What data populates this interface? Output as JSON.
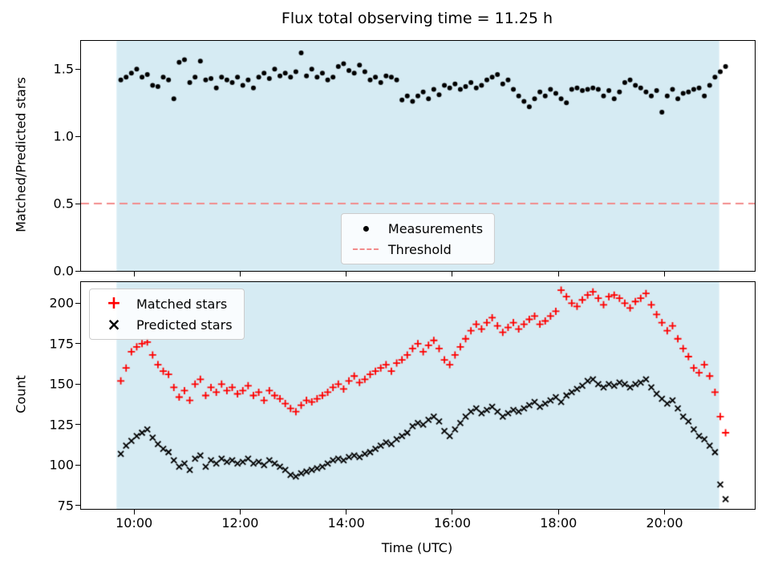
{
  "x_hours": [
    9.75,
    9.85,
    9.95,
    10.05,
    10.15,
    10.25,
    10.35,
    10.45,
    10.55,
    10.65,
    10.75,
    10.85,
    10.95,
    11.05,
    11.15,
    11.25,
    11.35,
    11.45,
    11.55,
    11.65,
    11.75,
    11.85,
    11.95,
    12.05,
    12.15,
    12.25,
    12.35,
    12.45,
    12.55,
    12.65,
    12.75,
    12.85,
    12.95,
    13.05,
    13.15,
    13.25,
    13.35,
    13.45,
    13.55,
    13.65,
    13.75,
    13.85,
    13.95,
    14.05,
    14.15,
    14.25,
    14.35,
    14.45,
    14.55,
    14.65,
    14.75,
    14.85,
    14.95,
    15.05,
    15.15,
    15.25,
    15.35,
    15.45,
    15.55,
    15.65,
    15.75,
    15.85,
    15.95,
    16.05,
    16.15,
    16.25,
    16.35,
    16.45,
    16.55,
    16.65,
    16.75,
    16.85,
    16.95,
    17.05,
    17.15,
    17.25,
    17.35,
    17.45,
    17.55,
    17.65,
    17.75,
    17.85,
    17.95,
    18.05,
    18.15,
    18.25,
    18.35,
    18.45,
    18.55,
    18.65,
    18.75,
    18.85,
    18.95,
    19.05,
    19.15,
    19.25,
    19.35,
    19.45,
    19.55,
    19.65,
    19.75,
    19.85,
    19.95,
    20.05,
    20.15,
    20.25,
    20.35,
    20.45,
    20.55,
    20.65,
    20.75,
    20.85,
    20.95,
    21.05,
    21.15
  ],
  "chart_data": [
    {
      "type": "scatter",
      "title": "Flux total observing time = 11.25 h",
      "ylabel": "Matched/Predicted stars",
      "xlim": [
        9.0,
        21.7
      ],
      "ylim": [
        0.0,
        1.71
      ],
      "yticks": [
        0.0,
        0.5,
        1.0,
        1.5
      ],
      "ytick_labels": [
        "0.0",
        "0.5",
        "1.0",
        "1.5"
      ],
      "xticks": [
        10,
        12,
        14,
        16,
        18,
        20
      ],
      "shaded_span": {
        "x0": 9.67,
        "x1": 21.03,
        "color": "#d6ebf3"
      },
      "threshold": {
        "y": 0.5,
        "label": "Threshold",
        "color": "#f28b8b",
        "style": "dashed"
      },
      "legend_position": "lower center",
      "series": [
        {
          "name": "Measurements",
          "marker": "dot",
          "color": "#000000",
          "values": [
            1.42,
            1.44,
            1.47,
            1.5,
            1.44,
            1.46,
            1.38,
            1.37,
            1.44,
            1.42,
            1.28,
            1.55,
            1.57,
            1.4,
            1.44,
            1.56,
            1.42,
            1.43,
            1.36,
            1.44,
            1.42,
            1.4,
            1.44,
            1.38,
            1.42,
            1.36,
            1.44,
            1.47,
            1.43,
            1.5,
            1.45,
            1.47,
            1.44,
            1.48,
            1.62,
            1.45,
            1.5,
            1.44,
            1.47,
            1.42,
            1.44,
            1.52,
            1.54,
            1.49,
            1.47,
            1.53,
            1.48,
            1.42,
            1.44,
            1.4,
            1.45,
            1.44,
            1.42,
            1.27,
            1.3,
            1.26,
            1.3,
            1.33,
            1.28,
            1.35,
            1.31,
            1.38,
            1.36,
            1.39,
            1.35,
            1.37,
            1.4,
            1.36,
            1.38,
            1.42,
            1.44,
            1.46,
            1.39,
            1.42,
            1.35,
            1.3,
            1.26,
            1.22,
            1.28,
            1.33,
            1.3,
            1.35,
            1.32,
            1.28,
            1.25,
            1.35,
            1.36,
            1.34,
            1.35,
            1.36,
            1.35,
            1.3,
            1.34,
            1.28,
            1.33,
            1.4,
            1.42,
            1.38,
            1.36,
            1.33,
            1.3,
            1.34,
            1.18,
            1.3,
            1.35,
            1.28,
            1.32,
            1.33,
            1.35,
            1.36,
            1.3,
            1.38,
            1.44,
            1.48,
            1.52
          ]
        }
      ]
    },
    {
      "type": "scatter",
      "ylabel": "Count",
      "xlabel": "Time (UTC)",
      "xlim": [
        9.0,
        21.7
      ],
      "ylim": [
        73,
        213
      ],
      "yticks": [
        75,
        100,
        125,
        150,
        175,
        200
      ],
      "ytick_labels": [
        "75",
        "100",
        "125",
        "150",
        "175",
        "200"
      ],
      "xticks": [
        10,
        12,
        14,
        16,
        18,
        20
      ],
      "xtick_labels": [
        "10:00",
        "12:00",
        "14:00",
        "16:00",
        "18:00",
        "20:00"
      ],
      "shaded_span": {
        "x0": 9.67,
        "x1": 21.03,
        "color": "#d6ebf3"
      },
      "legend_position": "upper left",
      "series": [
        {
          "name": "Matched stars",
          "marker": "plus",
          "color": "#ff0000",
          "values": [
            152,
            160,
            170,
            173,
            175,
            176,
            168,
            162,
            158,
            156,
            148,
            142,
            146,
            140,
            150,
            153,
            143,
            148,
            145,
            150,
            146,
            148,
            144,
            146,
            149,
            143,
            145,
            140,
            146,
            143,
            141,
            138,
            135,
            133,
            137,
            140,
            139,
            141,
            143,
            145,
            148,
            150,
            147,
            152,
            155,
            151,
            153,
            156,
            158,
            160,
            162,
            158,
            163,
            165,
            168,
            172,
            175,
            170,
            174,
            177,
            172,
            165,
            162,
            168,
            173,
            178,
            183,
            187,
            184,
            188,
            191,
            186,
            182,
            185,
            188,
            184,
            187,
            190,
            192,
            187,
            189,
            192,
            195,
            208,
            204,
            200,
            198,
            202,
            205,
            207,
            203,
            199,
            204,
            205,
            203,
            200,
            197,
            201,
            203,
            206,
            199,
            193,
            188,
            183,
            186,
            178,
            172,
            167,
            160,
            157,
            162,
            155,
            145,
            130,
            120
          ]
        },
        {
          "name": "Predicted stars",
          "marker": "x",
          "color": "#000000",
          "values": [
            107,
            112,
            115,
            118,
            120,
            122,
            117,
            113,
            110,
            108,
            103,
            99,
            101,
            97,
            104,
            106,
            99,
            103,
            101,
            104,
            102,
            103,
            101,
            102,
            104,
            101,
            102,
            100,
            103,
            101,
            99,
            97,
            94,
            93,
            95,
            96,
            97,
            98,
            99,
            101,
            103,
            104,
            103,
            105,
            106,
            105,
            107,
            108,
            110,
            112,
            114,
            113,
            116,
            118,
            120,
            124,
            126,
            125,
            128,
            130,
            127,
            121,
            118,
            122,
            126,
            130,
            133,
            135,
            132,
            134,
            136,
            133,
            130,
            132,
            134,
            133,
            135,
            137,
            139,
            136,
            138,
            140,
            142,
            139,
            143,
            145,
            147,
            149,
            152,
            153,
            150,
            148,
            150,
            149,
            151,
            150,
            148,
            150,
            151,
            153,
            148,
            144,
            141,
            138,
            140,
            135,
            130,
            127,
            122,
            118,
            116,
            112,
            108,
            88,
            79
          ]
        }
      ]
    }
  ]
}
